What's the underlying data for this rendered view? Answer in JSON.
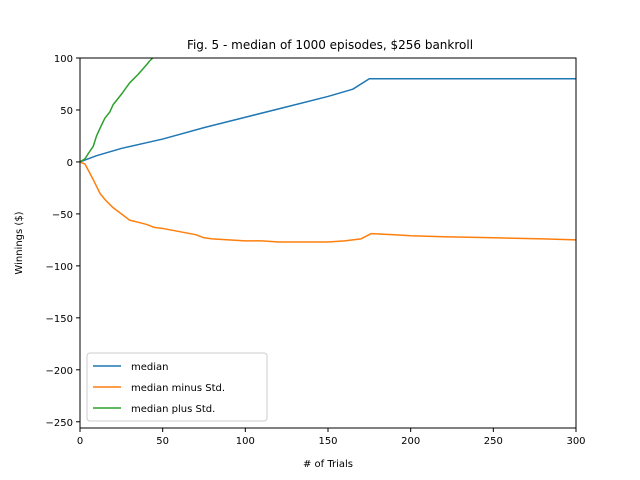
{
  "chart_data": {
    "type": "line",
    "title": "Fig. 5 - median of 1000 episodes, $256 bankroll",
    "xlabel": "# of Trials",
    "ylabel": "Winnings ($)",
    "xlim": [
      0,
      300
    ],
    "ylim": [
      -256,
      100
    ],
    "x_ticks": [
      0,
      50,
      100,
      150,
      200,
      250,
      300
    ],
    "y_ticks": [
      100,
      50,
      0,
      -50,
      -100,
      -150,
      -200,
      -250
    ],
    "x_tick_labels": [
      "0",
      "50",
      "100",
      "150",
      "200",
      "250",
      "300"
    ],
    "y_tick_labels": [
      "100",
      "50",
      "0",
      "−50",
      "−100",
      "−150",
      "−200",
      "−250"
    ],
    "grid": false,
    "legend_position": "lower-left",
    "series": [
      {
        "name": "median",
        "color": "#1f77b4",
        "x": [
          0,
          10,
          25,
          50,
          75,
          100,
          125,
          150,
          165,
          175,
          176,
          200,
          250,
          300
        ],
        "y": [
          0,
          6,
          13,
          22,
          33,
          43,
          53,
          63,
          70,
          80,
          80,
          80,
          80,
          80
        ]
      },
      {
        "name": "median minus Std.",
        "color": "#ff7f0e",
        "x": [
          0,
          3,
          5,
          8,
          12,
          15,
          20,
          25,
          30,
          35,
          40,
          45,
          50,
          60,
          70,
          75,
          80,
          90,
          100,
          110,
          120,
          130,
          140,
          150,
          160,
          170,
          176,
          190,
          200,
          220,
          250,
          280,
          300
        ],
        "y": [
          0,
          -2,
          -8,
          -17,
          -30,
          -36,
          -44,
          -50,
          -56,
          -58,
          -60,
          -63,
          -64,
          -67,
          -70,
          -73,
          -74,
          -75,
          -76,
          -76,
          -77,
          -77,
          -77,
          -77,
          -76,
          -74,
          -69,
          -70,
          -71,
          -72,
          -73,
          -74,
          -75
        ]
      },
      {
        "name": "median plus Std.",
        "color": "#2ca02c",
        "x": [
          0,
          3,
          5,
          8,
          10,
          12,
          15,
          18,
          20,
          25,
          30,
          35,
          40,
          42,
          44
        ],
        "y": [
          0,
          3,
          8,
          15,
          25,
          32,
          42,
          48,
          55,
          65,
          76,
          84,
          93,
          97,
          100
        ]
      }
    ]
  }
}
